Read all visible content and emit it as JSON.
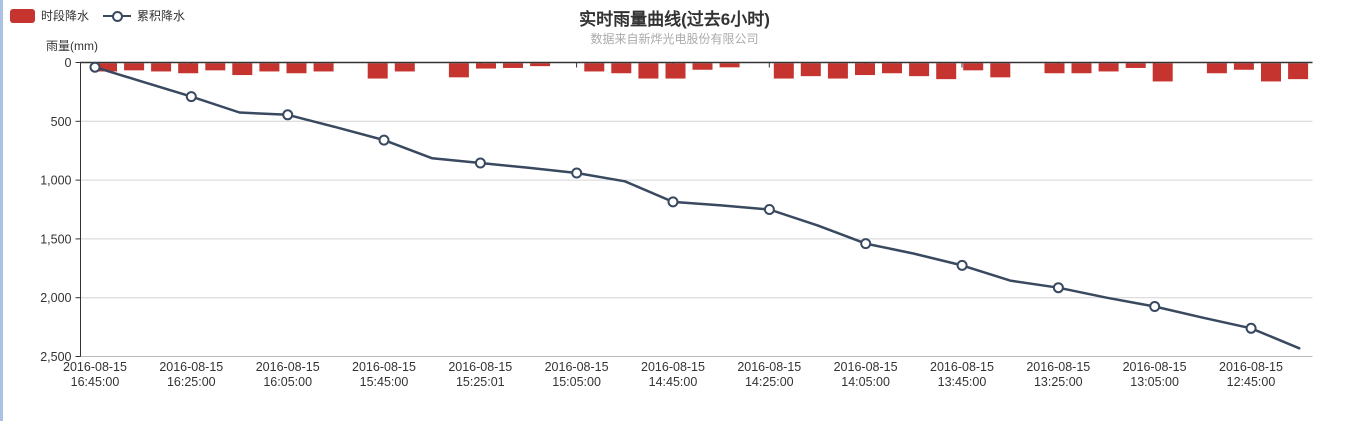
{
  "title": "实时雨量曲线(过去6小时)",
  "subtitle": "数据来自新烨光电股份有限公司",
  "legend": {
    "items": [
      {
        "label": "时段降水",
        "type": "bar"
      },
      {
        "label": "累积降水",
        "type": "line"
      }
    ]
  },
  "colors": {
    "bar": "#c5342e",
    "line": "#39495f",
    "marker_fill": "#ffffff",
    "title_text": "#333333",
    "subtitle_text": "#aaaaaa",
    "axis_line": "#333333",
    "grid_line": "#d4d4d4",
    "bottom_line": "#bbbbbb",
    "tick_text": "#333333",
    "left_strip": "#a9c3e1"
  },
  "chart_data": {
    "type": "mixed",
    "y_axis_name": "雨量(mm)",
    "y_axis_inverted": true,
    "y_range": [
      0,
      2500
    ],
    "grid": true,
    "legend_position": "top-left",
    "y_ticks": [
      0,
      500,
      1000,
      1500,
      2000,
      2500
    ],
    "y_tick_labels": [
      "0",
      "500",
      "1,000",
      "1,500",
      "2,000",
      "2,500"
    ],
    "x_tick_labels": [
      {
        "date": "2016-08-15",
        "time": "16:45:00"
      },
      {
        "date": "2016-08-15",
        "time": "16:25:00"
      },
      {
        "date": "2016-08-15",
        "time": "16:05:00"
      },
      {
        "date": "2016-08-15",
        "time": "15:45:00"
      },
      {
        "date": "2016-08-15",
        "time": "15:25:01"
      },
      {
        "date": "2016-08-15",
        "time": "15:05:00"
      },
      {
        "date": "2016-08-15",
        "time": "14:45:00"
      },
      {
        "date": "2016-08-15",
        "time": "14:25:00"
      },
      {
        "date": "2016-08-15",
        "time": "14:05:00"
      },
      {
        "date": "2016-08-15",
        "time": "13:45:00"
      },
      {
        "date": "2016-08-15",
        "time": "13:25:00"
      },
      {
        "date": "2016-08-15",
        "time": "13:05:00"
      },
      {
        "date": "2016-08-15",
        "time": "12:45:00"
      }
    ],
    "series": [
      {
        "name": "时段降水",
        "type": "bar",
        "values": [
          70,
          60,
          70,
          85,
          60,
          100,
          70,
          85,
          70,
          0,
          130,
          70,
          0,
          120,
          45,
          40,
          25,
          0,
          70,
          85,
          130,
          130,
          55,
          35,
          0,
          130,
          110,
          130,
          100,
          85,
          110,
          135,
          60,
          120,
          0,
          85,
          85,
          70,
          40,
          155,
          0,
          85,
          55,
          155,
          135
        ]
      },
      {
        "name": "累积降水",
        "type": "line",
        "marker_every": 2,
        "values": [
          40,
          165,
          290,
          425,
          445,
          550,
          660,
          815,
          855,
          895,
          940,
          1010,
          1185,
          1215,
          1250,
          1385,
          1540,
          1625,
          1725,
          1855,
          1915,
          2000,
          2075,
          2170,
          2260,
          2430
        ]
      }
    ]
  }
}
